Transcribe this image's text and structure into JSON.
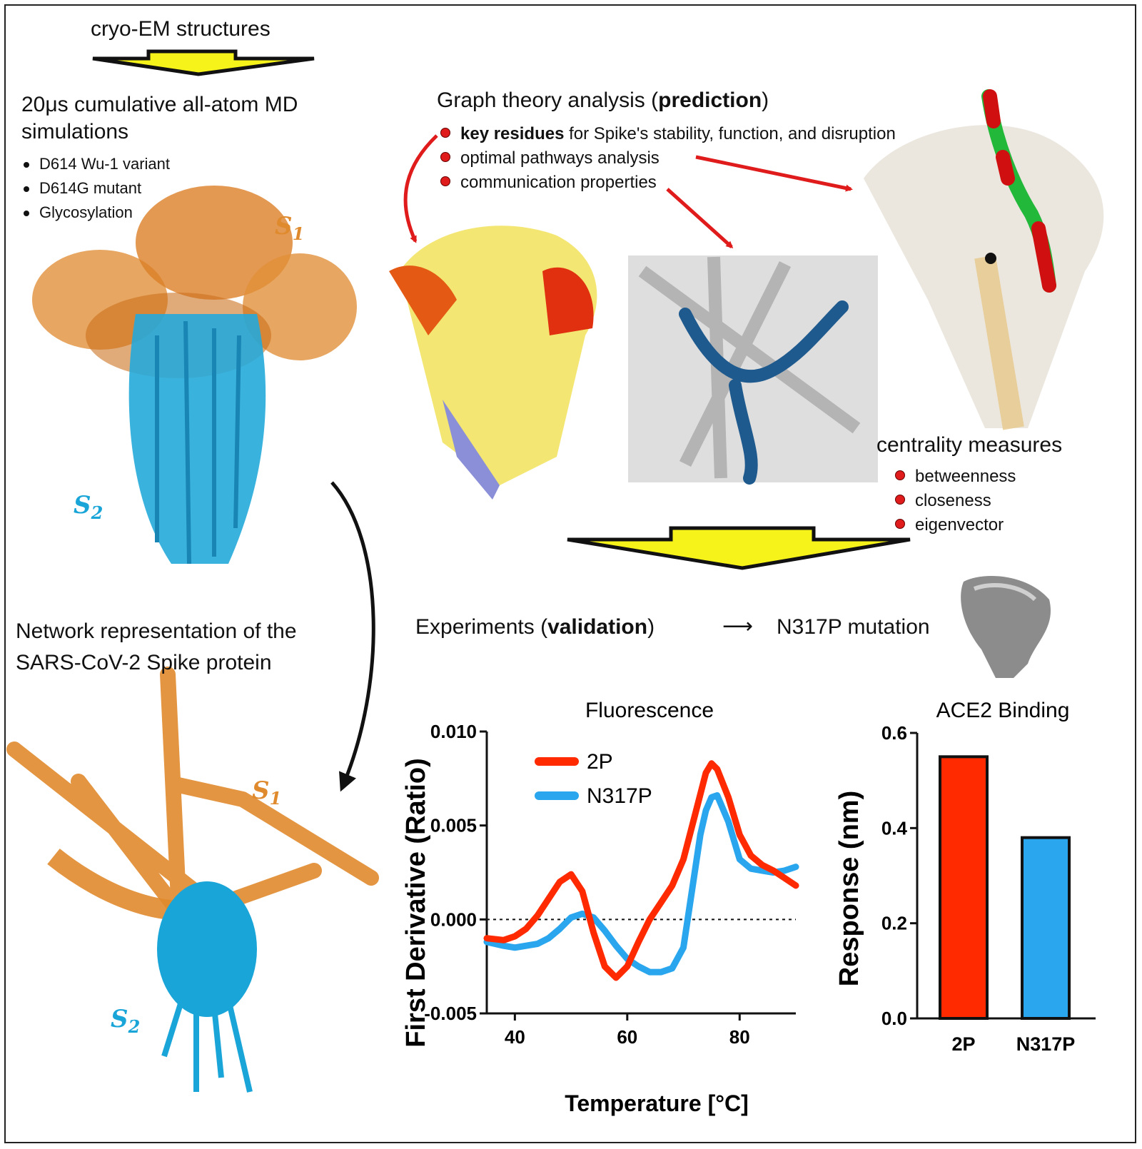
{
  "header": {
    "cryo": "cryo-EM structures"
  },
  "md": {
    "title_line1": "20μs cumulative all-atom MD",
    "title_line2": "simulations",
    "items": [
      "D614 Wu-1 variant",
      "D614G mutant",
      "Glycosylation"
    ]
  },
  "labels": {
    "s1": "S",
    "s1_sub": "1",
    "s2": "S",
    "s2_sub": "2"
  },
  "network": {
    "line1": "Network representation of the",
    "line2": "SARS-CoV-2 Spike protein"
  },
  "graph": {
    "title_pre": "Graph theory analysis (",
    "title_bold": "prediction",
    "title_post": ")",
    "item1_bold": "key residues",
    "item1_rest": " for Spike's stability, function, and disruption",
    "item2": "optimal pathways analysis",
    "item3": "communication properties"
  },
  "centrality": {
    "title": "centrality measures",
    "items": [
      "betweenness",
      "closeness",
      "eigenvector"
    ]
  },
  "experiments": {
    "pre": "Experiments (",
    "bold": "validation",
    "post": ")",
    "arrow": "⟶",
    "mutation": "N317P mutation"
  },
  "colors": {
    "orange": "#e08a2e",
    "cyan": "#1aa5d8",
    "red": "#ff2a00",
    "blue": "#2aa6ee",
    "yellow": "#f6f31a"
  },
  "chart_data": [
    {
      "type": "line",
      "title": "Fluorescence",
      "xlabel": "Temperature [°C]",
      "ylabel": "First Derivative (Ratio)",
      "xlim": [
        35,
        90
      ],
      "ylim": [
        -0.005,
        0.01
      ],
      "xticks": [
        "40",
        "60",
        "80"
      ],
      "yticks": [
        "0.010",
        "0.005",
        "0.000",
        "-0.005"
      ],
      "legend": "top-left",
      "series": [
        {
          "name": "2P",
          "color": "#ff2a00",
          "x": [
            35,
            38,
            40,
            42,
            44,
            46,
            48,
            50,
            52,
            54,
            56,
            58,
            60,
            62,
            64,
            66,
            68,
            70,
            72,
            74,
            75,
            76,
            78,
            80,
            82,
            84,
            86,
            88,
            90
          ],
          "y": [
            -0.001,
            -0.0011,
            -0.0009,
            -0.0005,
            0.0002,
            0.0011,
            0.002,
            0.0024,
            0.0015,
            -0.0007,
            -0.0025,
            -0.0031,
            -0.0025,
            -0.0012,
            0,
            0.0009,
            0.0018,
            0.0032,
            0.0055,
            0.0078,
            0.0083,
            0.008,
            0.0065,
            0.0045,
            0.0034,
            0.0029,
            0.0026,
            0.0022,
            0.0018
          ]
        },
        {
          "name": "N317P",
          "color": "#2aa6ee",
          "x": [
            35,
            38,
            40,
            42,
            44,
            46,
            48,
            50,
            52,
            54,
            56,
            58,
            60,
            62,
            64,
            66,
            68,
            70,
            71,
            72,
            73,
            74,
            75,
            76,
            78,
            80,
            82,
            84,
            86,
            88,
            90
          ],
          "y": [
            -0.0012,
            -0.0014,
            -0.0015,
            -0.0014,
            -0.0013,
            -0.001,
            -0.0005,
            0.0001,
            0.0003,
            0.0001,
            -0.0006,
            -0.0014,
            -0.0021,
            -0.0025,
            -0.0028,
            -0.0028,
            -0.0026,
            -0.0015,
            0.0005,
            0.0025,
            0.0045,
            0.0058,
            0.0065,
            0.0066,
            0.0052,
            0.0032,
            0.0027,
            0.0026,
            0.0025,
            0.0026,
            0.0028
          ]
        }
      ]
    },
    {
      "type": "bar",
      "title": "ACE2 Binding",
      "ylabel": "Response (nm)",
      "categories": [
        "2P",
        "N317P"
      ],
      "values": [
        0.55,
        0.38
      ],
      "colors": [
        "#ff2a00",
        "#2aa6ee"
      ],
      "ylim": [
        0,
        0.6
      ],
      "yticks": [
        "0.6",
        "0.4",
        "0.2",
        "0.0"
      ]
    }
  ]
}
